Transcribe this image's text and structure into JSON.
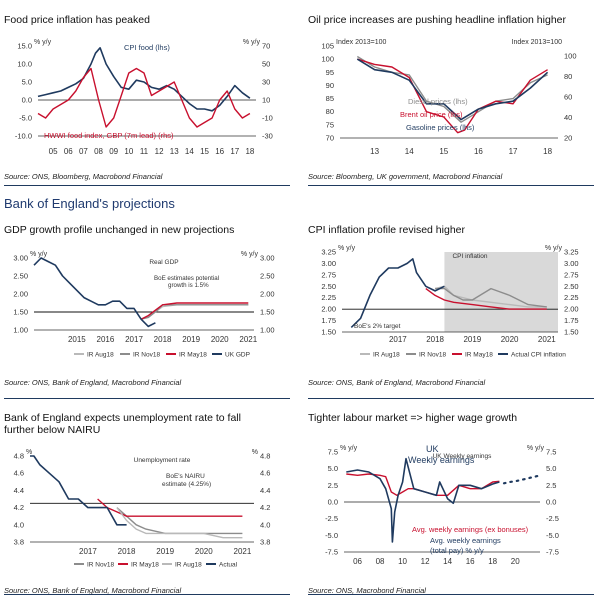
{
  "colors": {
    "navy": "#1f3a5f",
    "red": "#c8102e",
    "grey": "#8c8c8c",
    "lightgrey": "#b9b9b9",
    "shade": "#d9d9d9",
    "dark": "#333333"
  },
  "section_heading": "Bank of England's projections",
  "panels": [
    {
      "id": "food",
      "title": "Food price inflation has peaked",
      "source": "Source: ONS, Bloomberg, Macrobond Financial"
    },
    {
      "id": "oil",
      "title": "Oil price increases are pushing headline inflation higher",
      "source": "Source: Bloomberg, UK government, Macrobond Financial"
    },
    {
      "id": "gdp",
      "title": "GDP growth profile unchanged in new projections",
      "source": "Source: ONS, Bank of England, Macrobond Financial"
    },
    {
      "id": "cpi",
      "title": "CPI inflation profile revised higher",
      "source": "Source: ONS, Bank of England, Macrobond Financial"
    },
    {
      "id": "unemp",
      "title": "Bank of England expects unemployment rate to fall further below NAIRU",
      "source": "Source: ONS, Bank of England, Macrobond Financial"
    },
    {
      "id": "wages",
      "title": "Tighter labour market => higher wage growth",
      "source": "Source: ONS, Macrobond Financial"
    }
  ],
  "chart_data": [
    {
      "id": "food",
      "type": "line",
      "left_axis_label": "% y/y",
      "right_axis_label": "% y/y",
      "ylim_left": [
        -10,
        15
      ],
      "ylim_right": [
        -30,
        70
      ],
      "yticks_left": [
        "15.0",
        "10.0",
        "5.0",
        "0.0",
        "-5.0",
        "-10.0"
      ],
      "yticks_right": [
        "70",
        "50",
        "30",
        "10",
        "-10",
        "-30"
      ],
      "xticks": [
        "05",
        "06",
        "07",
        "08",
        "09",
        "10",
        "11",
        "12",
        "13",
        "14",
        "15",
        "16",
        "17",
        "18"
      ],
      "series": [
        {
          "name": "CPI food (lhs)",
          "axis": "left",
          "color": "navy",
          "x": [
            2004.5,
            2005,
            2005.5,
            2006,
            2006.5,
            2007,
            2007.5,
            2008,
            2008.3,
            2008.6,
            2009,
            2009.5,
            2010,
            2010.5,
            2011,
            2011.5,
            2012,
            2012.5,
            2013,
            2013.5,
            2014,
            2014.5,
            2015,
            2015.5,
            2016,
            2016.5,
            2017,
            2017.5,
            2018,
            2018.5
          ],
          "y": [
            1.0,
            1.5,
            2.0,
            2.5,
            3.5,
            4.5,
            6.0,
            10.0,
            13.0,
            14.5,
            10.0,
            6.5,
            3.5,
            3.0,
            5.5,
            5.0,
            3.5,
            3.0,
            4.0,
            3.0,
            1.0,
            -1.0,
            -2.5,
            -2.5,
            -3.0,
            -1.5,
            1.0,
            4.0,
            2.0,
            0.5
          ]
        },
        {
          "name": "HWWI food index, GBP (7m lead) (rhs)",
          "axis": "right",
          "color": "red",
          "x": [
            2004.5,
            2005,
            2005.5,
            2006,
            2006.5,
            2007,
            2007.5,
            2008,
            2008.5,
            2009,
            2009.5,
            2010,
            2010.5,
            2011,
            2011.5,
            2012,
            2012.5,
            2013,
            2013.5,
            2014,
            2014.5,
            2015,
            2015.5,
            2016,
            2016.5,
            2017,
            2017.5,
            2018,
            2018.5
          ],
          "y": [
            -5,
            -10,
            0,
            5,
            10,
            20,
            35,
            45,
            10,
            -20,
            -10,
            15,
            40,
            45,
            40,
            15,
            20,
            25,
            30,
            10,
            -10,
            -20,
            -15,
            -10,
            10,
            20,
            0,
            -10,
            -5
          ]
        }
      ]
    },
    {
      "id": "oil",
      "type": "line",
      "left_axis_label": "Index 2013=100",
      "right_axis_label": "Index 2013=100",
      "ylim_left": [
        70,
        105
      ],
      "ylim_right": [
        20,
        110
      ],
      "yticks_left": [
        "105",
        "100",
        "95",
        "90",
        "85",
        "80",
        "75",
        "70"
      ],
      "yticks_right": [
        "100",
        "80",
        "60",
        "40",
        "20"
      ],
      "xticks": [
        "13",
        "14",
        "15",
        "16",
        "17",
        "18"
      ],
      "series": [
        {
          "name": "Diesel prices (lhs)",
          "axis": "left",
          "color": "grey",
          "x": [
            2013,
            2013.5,
            2014,
            2014.5,
            2015,
            2015.25,
            2015.5,
            2016,
            2016.5,
            2017,
            2017.5,
            2018,
            2018.5
          ],
          "y": [
            101,
            97,
            95,
            94,
            84,
            83,
            82,
            76,
            80,
            84,
            85,
            91,
            94
          ]
        },
        {
          "name": "Brent oil price (lhs)",
          "axis": "left",
          "color": "red",
          "x": [
            2013,
            2013.5,
            2014,
            2014.5,
            2015,
            2015.5,
            2015.9,
            2016.1,
            2016.5,
            2017,
            2017.5,
            2018,
            2018.5
          ],
          "y": [
            100,
            98,
            97,
            93,
            80,
            78,
            72,
            73,
            81,
            84,
            83,
            92,
            96
          ]
        },
        {
          "name": "Gasoline prices (lhs)",
          "axis": "left",
          "color": "navy",
          "x": [
            2013,
            2013.5,
            2014,
            2014.5,
            2015,
            2015.5,
            2016,
            2016.5,
            2017,
            2017.5,
            2018,
            2018.5
          ],
          "y": [
            100,
            96,
            95,
            92,
            83,
            83,
            77,
            81,
            83,
            84,
            89,
            95
          ]
        }
      ]
    },
    {
      "id": "gdp",
      "type": "line",
      "chart_title": "Real GDP",
      "left_axis_label": "% y/y",
      "right_axis_label": "% y/y",
      "ylim": [
        1.0,
        3.0
      ],
      "yticks": [
        "3.00",
        "2.50",
        "2.00",
        "1.50",
        "1.00"
      ],
      "xticks": [
        "2015",
        "2016",
        "2017",
        "2018",
        "2019",
        "2020",
        "2021"
      ],
      "annotation": "BoE estimates potential growth is 1.5%",
      "reference_line": 1.5,
      "series": [
        {
          "name": "IR Aug18",
          "color": "lightgrey",
          "x": [
            2017.75,
            2018,
            2018.25,
            2018.5,
            2019,
            2019.5,
            2020,
            2020.5,
            2021,
            2021.5
          ],
          "y": [
            1.3,
            1.4,
            1.5,
            1.65,
            1.7,
            1.7,
            1.7,
            1.7,
            1.7,
            1.7
          ]
        },
        {
          "name": "IR Nov18",
          "color": "grey",
          "x": [
            2017.75,
            2018,
            2018.25,
            2018.5,
            2019,
            2019.5,
            2020,
            2020.5,
            2021,
            2021.5
          ],
          "y": [
            1.3,
            1.35,
            1.5,
            1.7,
            1.7,
            1.7,
            1.7,
            1.7,
            1.7,
            1.7
          ]
        },
        {
          "name": "IR May18",
          "color": "red",
          "x": [
            2017.75,
            2018,
            2018.25,
            2018.5,
            2019,
            2019.5,
            2020,
            2020.5,
            2021,
            2021.5
          ],
          "y": [
            1.3,
            1.4,
            1.55,
            1.7,
            1.75,
            1.75,
            1.75,
            1.75,
            1.75,
            1.75
          ]
        },
        {
          "name": "UK GDP",
          "color": "navy",
          "x": [
            2014,
            2014.25,
            2014.5,
            2014.75,
            2015,
            2015.25,
            2015.5,
            2015.75,
            2016,
            2016.25,
            2016.5,
            2016.75,
            2017,
            2017.25,
            2017.5,
            2017.75,
            2018,
            2018.25
          ],
          "y": [
            2.8,
            3.0,
            2.9,
            2.8,
            2.5,
            2.3,
            2.1,
            1.9,
            1.8,
            1.7,
            1.7,
            1.8,
            1.8,
            1.6,
            1.6,
            1.3,
            1.1,
            1.2
          ]
        }
      ]
    },
    {
      "id": "cpi",
      "type": "line",
      "chart_title": "CPI inflation",
      "left_axis_label": "% y/y",
      "right_axis_label": "% y/y",
      "ylim": [
        1.5,
        3.25
      ],
      "yticks": [
        "3.25",
        "3.00",
        "2.75",
        "2.50",
        "2.25",
        "2.00",
        "1.75",
        "1.50"
      ],
      "xticks": [
        "2017",
        "2018",
        "2019",
        "2020",
        "2021"
      ],
      "annotation": "BoE's 2% target",
      "reference_line": 2.0,
      "shaded_from": 2018.75,
      "series": [
        {
          "name": "IR Aug18",
          "color": "lightgrey",
          "x": [
            2018.5,
            2018.75,
            2019,
            2019.25,
            2019.5,
            2020,
            2020.5,
            2021,
            2021.5
          ],
          "y": [
            2.45,
            2.5,
            2.3,
            2.25,
            2.2,
            2.15,
            2.1,
            2.05,
            2.05
          ]
        },
        {
          "name": "IR Nov18",
          "color": "grey",
          "x": [
            2018.5,
            2018.75,
            2019,
            2019.25,
            2019.5,
            2020,
            2020.5,
            2021,
            2021.5
          ],
          "y": [
            2.45,
            2.45,
            2.3,
            2.2,
            2.2,
            2.45,
            2.3,
            2.1,
            2.05
          ]
        },
        {
          "name": "IR May18",
          "color": "red",
          "x": [
            2018.25,
            2018.5,
            2018.75,
            2019,
            2019.5,
            2020,
            2020.5,
            2021,
            2021.5
          ],
          "y": [
            2.45,
            2.3,
            2.2,
            2.15,
            2.1,
            2.05,
            2.0,
            2.0,
            2.0
          ]
        },
        {
          "name": "Actual CPI inflation",
          "color": "navy",
          "x": [
            2016.25,
            2016.5,
            2016.75,
            2017,
            2017.25,
            2017.5,
            2017.75,
            2017.9,
            2018,
            2018.25,
            2018.5,
            2018.75
          ],
          "y": [
            1.6,
            1.8,
            2.3,
            2.7,
            2.9,
            2.9,
            3.0,
            3.1,
            2.8,
            2.5,
            2.4,
            2.5
          ]
        }
      ]
    },
    {
      "id": "unemp",
      "type": "line",
      "chart_title": "Unemployment rate",
      "left_axis_label": "%",
      "right_axis_label": "%",
      "ylim": [
        3.8,
        4.8
      ],
      "yticks": [
        "4.8",
        "4.6",
        "4.4",
        "4.2",
        "4.0",
        "3.8"
      ],
      "xticks": [
        "2017",
        "2018",
        "2019",
        "2020",
        "2021"
      ],
      "annotation": "BoE's NAIRU estimate (4.25%)",
      "reference_line": 4.25,
      "series": [
        {
          "name": "IR Nov18",
          "color": "grey",
          "x": [
            2018.25,
            2018.5,
            2018.75,
            2019,
            2019.5,
            2020,
            2020.5,
            2021,
            2021.5
          ],
          "y": [
            4.2,
            4.1,
            4.0,
            3.95,
            3.9,
            3.9,
            3.9,
            3.9,
            3.9
          ]
        },
        {
          "name": "IR May18",
          "color": "red",
          "x": [
            2017.75,
            2018,
            2018.25,
            2018.5,
            2018.75,
            2019,
            2019.5,
            2020,
            2020.5,
            2021,
            2021.5
          ],
          "y": [
            4.3,
            4.2,
            4.15,
            4.1,
            4.1,
            4.1,
            4.1,
            4.1,
            4.1,
            4.1,
            4.1
          ]
        },
        {
          "name": "IR Aug18",
          "color": "lightgrey",
          "x": [
            2018.25,
            2018.5,
            2018.75,
            2019,
            2019.5,
            2020,
            2020.5,
            2021,
            2021.5
          ],
          "y": [
            4.2,
            4.05,
            3.95,
            3.9,
            3.9,
            3.9,
            3.9,
            3.85,
            3.85
          ]
        },
        {
          "name": "Actual",
          "color": "navy",
          "x": [
            2016,
            2016.1,
            2016.25,
            2016.5,
            2016.75,
            2017,
            2017.25,
            2017.5,
            2017.75,
            2018,
            2018.25,
            2018.5
          ],
          "y": [
            4.8,
            4.8,
            4.7,
            4.6,
            4.5,
            4.3,
            4.3,
            4.2,
            4.2,
            4.2,
            4.0,
            4.0
          ]
        }
      ]
    },
    {
      "id": "wages",
      "type": "line",
      "chart_title": "UK Weekly earnings",
      "left_axis_label": "% y/y",
      "right_axis_label": "% y/y",
      "ylim": [
        -7.5,
        7.5
      ],
      "yticks_left": [
        "7.5",
        "5.0",
        "2.5",
        "0.0",
        "-2.5",
        "-5.0",
        "-7.5"
      ],
      "yticks_right": [
        "7.5",
        "5.0",
        "2.5",
        "0.0",
        "-2.5",
        "-5.0",
        "-7.5"
      ],
      "xticks": [
        "06",
        "08",
        "10",
        "12",
        "14",
        "16",
        "18",
        "20"
      ],
      "series": [
        {
          "name": "Avg. weekly earnings (ex bonuses)",
          "color": "red",
          "x": [
            2005,
            2006,
            2007,
            2008,
            2008.5,
            2009,
            2009.5,
            2010,
            2010.5,
            2011,
            2012,
            2013,
            2014,
            2015,
            2016,
            2017,
            2018,
            2018.6
          ],
          "y": [
            4.2,
            4.0,
            4.2,
            4.0,
            3.8,
            1.5,
            1.0,
            1.5,
            2.0,
            2.0,
            1.5,
            1.0,
            1.0,
            2.5,
            2.0,
            2.0,
            3.0,
            3.1
          ]
        },
        {
          "name": "Avg. weekly earnings (total pay) % y/y",
          "color": "navy",
          "x": [
            2005,
            2006,
            2007,
            2008,
            2008.5,
            2009,
            2009.1,
            2009.3,
            2009.6,
            2010,
            2010.3,
            2011,
            2012,
            2013,
            2013.3,
            2014,
            2014.5,
            2015,
            2016,
            2017,
            2018,
            2018.6
          ],
          "y": [
            4.5,
            4.8,
            4.5,
            3.5,
            2.0,
            -1.0,
            -6.0,
            -1.5,
            1.0,
            3.0,
            6.5,
            2.0,
            1.5,
            1.0,
            3.0,
            0.5,
            -0.2,
            2.5,
            2.5,
            2.0,
            2.7,
            3.0
          ]
        },
        {
          "name": "projection",
          "color": "navy",
          "style": "dotted",
          "x": [
            2019,
            2019.5,
            2020,
            2020.5,
            2021,
            2021.5,
            2022
          ],
          "y": [
            2.8,
            3.0,
            3.1,
            3.3,
            3.5,
            3.7,
            3.9
          ]
        }
      ]
    }
  ]
}
